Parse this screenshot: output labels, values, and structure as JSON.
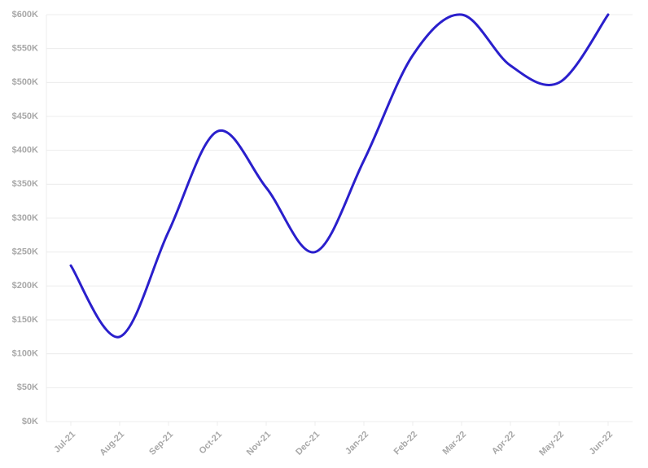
{
  "chart_data": {
    "type": "line",
    "categories": [
      "Jul-21",
      "Aug-21",
      "Sep-21",
      "Oct-21",
      "Nov-21",
      "Dec-21",
      "Jan-22",
      "Feb-22",
      "Mar-22",
      "Apr-22",
      "May-22",
      "Jun-22"
    ],
    "series": [
      {
        "color": "#2a1fcc",
        "values": [
          230000,
          125000,
          280000,
          428000,
          345000,
          250000,
          385000,
          540000,
          600000,
          525000,
          500000,
          600000
        ]
      }
    ],
    "ylim": [
      0,
      600000
    ],
    "yticks": [
      {
        "value": 0,
        "label": "$0K"
      },
      {
        "value": 50000,
        "label": "$50K"
      },
      {
        "value": 100000,
        "label": "$100K"
      },
      {
        "value": 150000,
        "label": "$150K"
      },
      {
        "value": 200000,
        "label": "$200K"
      },
      {
        "value": 250000,
        "label": "$250K"
      },
      {
        "value": 300000,
        "label": "$300K"
      },
      {
        "value": 350000,
        "label": "$350K"
      },
      {
        "value": 400000,
        "label": "$400K"
      },
      {
        "value": 450000,
        "label": "$450K"
      },
      {
        "value": 500000,
        "label": "$500K"
      },
      {
        "value": 550000,
        "label": "$550K"
      },
      {
        "value": 600000,
        "label": "$600K"
      }
    ],
    "grid": true
  }
}
